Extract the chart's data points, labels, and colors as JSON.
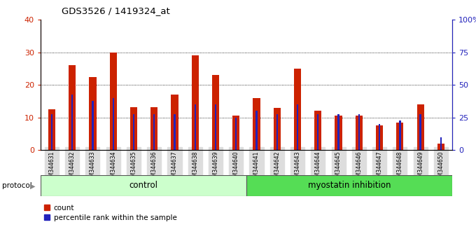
{
  "title": "GDS3526 / 1419324_at",
  "samples": [
    "GSM344631",
    "GSM344632",
    "GSM344633",
    "GSM344634",
    "GSM344635",
    "GSM344636",
    "GSM344637",
    "GSM344638",
    "GSM344639",
    "GSM344640",
    "GSM344641",
    "GSM344642",
    "GSM344643",
    "GSM344644",
    "GSM344645",
    "GSM344646",
    "GSM344647",
    "GSM344648",
    "GSM344649",
    "GSM344650"
  ],
  "count_values": [
    12.5,
    26.0,
    22.5,
    30.0,
    13.2,
    13.2,
    17.0,
    29.0,
    23.0,
    10.5,
    16.0,
    13.0,
    25.0,
    12.0,
    10.5,
    10.5,
    7.5,
    8.5,
    14.0,
    2.0
  ],
  "percentile_values": [
    27.5,
    42.5,
    37.5,
    40.0,
    27.5,
    27.5,
    27.5,
    35.0,
    35.0,
    25.0,
    30.0,
    27.5,
    35.0,
    27.5,
    27.5,
    27.5,
    20.0,
    22.5,
    27.5,
    10.0
  ],
  "control_count": 10,
  "myostatin_count": 10,
  "protocol_label": "protocol",
  "control_label": "control",
  "myostatin_label": "myostatin inhibition",
  "legend_count": "count",
  "legend_percentile": "percentile rank within the sample",
  "ylim_left": [
    0,
    40
  ],
  "ylim_right": [
    0,
    100
  ],
  "yticks_left": [
    0,
    10,
    20,
    30,
    40
  ],
  "yticks_right": [
    0,
    25,
    50,
    75,
    100
  ],
  "ytick_labels_right": [
    "0",
    "25",
    "50",
    "75",
    "100%"
  ],
  "bar_color": "#cc2200",
  "percentile_color": "#2222bb",
  "control_bg": "#ccffcc",
  "myostatin_bg": "#55dd55",
  "xtick_bg": "#dddddd",
  "bar_width": 0.35,
  "percentile_bar_width": 0.08
}
